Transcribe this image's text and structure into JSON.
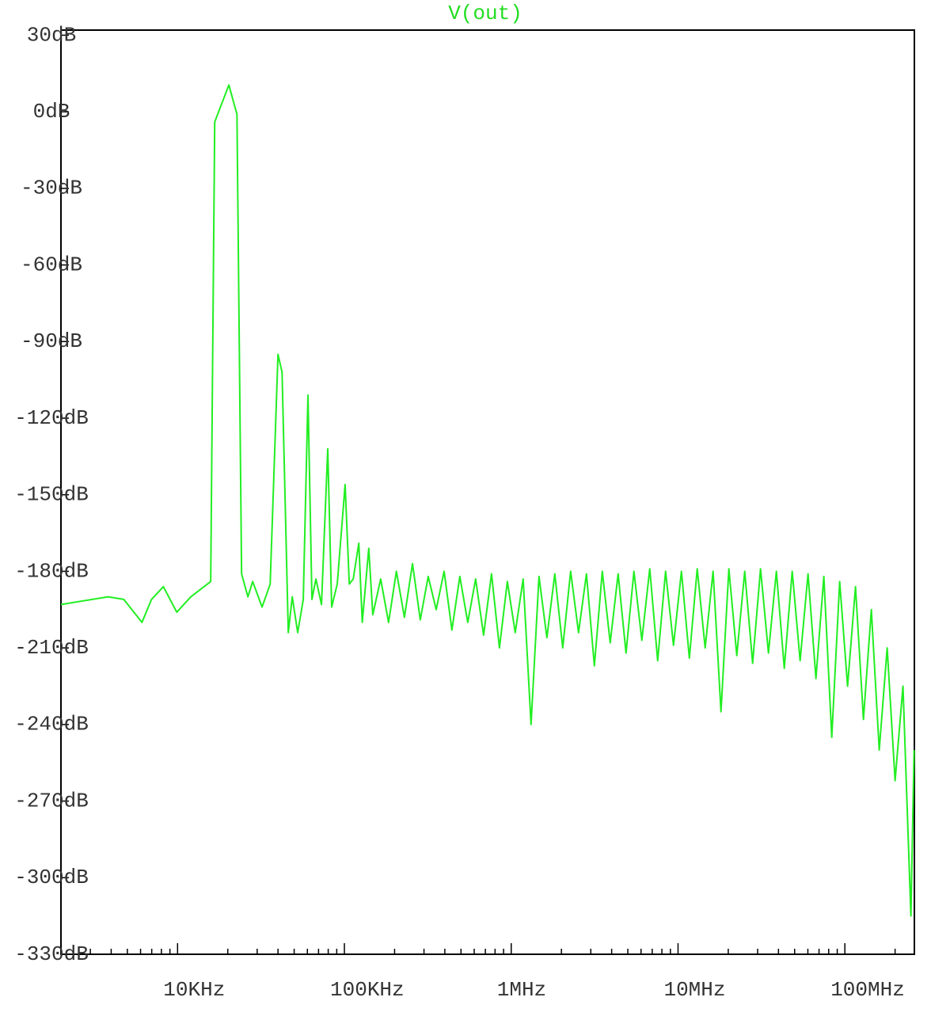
{
  "chart_data": {
    "type": "line",
    "title": "V(out)",
    "xscale": "log",
    "xlim": [
      2000,
      261000000
    ],
    "ylim": [
      -330,
      32
    ],
    "xticks": [
      {
        "value": 10000,
        "label": "10KHz"
      },
      {
        "value": 100000,
        "label": "100KHz"
      },
      {
        "value": 1000000,
        "label": "1MHz"
      },
      {
        "value": 10000000,
        "label": "10MHz"
      },
      {
        "value": 100000000,
        "label": "100MHz"
      }
    ],
    "xminor_ticks": [
      3000,
      4000,
      5000,
      6000,
      7000,
      8000,
      9000,
      20000,
      30000,
      40000,
      50000,
      60000,
      70000,
      80000,
      90000,
      200000,
      300000,
      400000,
      500000,
      600000,
      700000,
      800000,
      900000,
      2000000,
      3000000,
      4000000,
      5000000,
      6000000,
      7000000,
      8000000,
      9000000,
      20000000,
      30000000,
      40000000,
      50000000,
      60000000,
      70000000,
      80000000,
      90000000,
      200000000
    ],
    "yticks": [
      {
        "value": 30,
        "label": "30dB"
      },
      {
        "value": 0,
        "label": "0dB"
      },
      {
        "value": -30,
        "label": "-30dB"
      },
      {
        "value": -60,
        "label": "-60dB"
      },
      {
        "value": -90,
        "label": "-90dB"
      },
      {
        "value": -120,
        "label": "-120dB"
      },
      {
        "value": -150,
        "label": "-150dB"
      },
      {
        "value": -180,
        "label": "-180dB"
      },
      {
        "value": -210,
        "label": "-210dB"
      },
      {
        "value": -240,
        "label": "-240dB"
      },
      {
        "value": -270,
        "label": "-270dB"
      },
      {
        "value": -300,
        "label": "-300dB"
      },
      {
        "value": -330,
        "label": "-330dB"
      }
    ],
    "grid": false,
    "color": "#22ee22",
    "x": [
      2000,
      3830,
      4760,
      6120,
      6980,
      8220,
      9890,
      12000,
      15800,
      16700,
      20300,
      22700,
      24200,
      26400,
      28200,
      32100,
      35900,
      40000,
      42300,
      46100,
      48700,
      52500,
      56700,
      60500,
      63900,
      67500,
      72900,
      79500,
      83900,
      90600,
      101000,
      107000,
      113000,
      122000,
      128000,
      140000,
      148000,
      165000,
      184000,
      205000,
      229000,
      256000,
      285000,
      318000,
      355000,
      396000,
      441000,
      492000,
      549000,
      612000,
      683000,
      762000,
      850000,
      948000,
      1057000,
      1179000,
      1315000,
      1467000,
      1636000,
      1825000,
      2036000,
      2271000,
      2533000,
      2825000,
      3151000,
      3515000,
      3920000,
      4373000,
      4877000,
      5440000,
      6068000,
      6768000,
      7549000,
      8420000,
      9392000,
      10480000,
      11690000,
      13030000,
      14540000,
      16220000,
      18090000,
      20170000,
      22500000,
      25100000,
      28000000,
      31230000,
      34830000,
      38850000,
      43340000,
      48340000,
      53920000,
      60140000,
      67080000,
      74820000,
      83460000,
      93090000,
      103800000,
      115800000,
      129200000,
      144100000,
      160700000,
      179300000,
      200000000,
      223000000,
      248800000,
      260000000
    ],
    "values": [
      -193,
      -190,
      -191,
      -200,
      -191,
      -186,
      -196,
      -190,
      -184,
      -4,
      10.5,
      -1,
      -181,
      -190,
      -184,
      -194,
      -185,
      -95,
      -102,
      -204,
      -190,
      -204,
      -191,
      -111,
      -191,
      -183,
      -193,
      -132,
      -194,
      -185,
      -146,
      -185,
      -183,
      -169,
      -200,
      -171,
      -197,
      -183,
      -200,
      -180,
      -198,
      -177,
      -199,
      -182,
      -195,
      -180,
      -203,
      -182,
      -200,
      -183,
      -205,
      -181,
      -210,
      -184,
      -204,
      -183,
      -240,
      -182,
      -206,
      -181,
      -210,
      -180,
      -204,
      -181,
      -217,
      -180,
      -208,
      -181,
      -212,
      -180,
      -207,
      -179,
      -215,
      -180,
      -209,
      -180,
      -214,
      -179,
      -210,
      -180,
      -235,
      -179,
      -213,
      -180,
      -216,
      -179,
      -212,
      -180,
      -218,
      -180,
      -215,
      -181,
      -222,
      -182,
      -245,
      -184,
      -225,
      -186,
      -238,
      -195,
      -250,
      -210,
      -262,
      -225,
      -315,
      -250
    ]
  }
}
